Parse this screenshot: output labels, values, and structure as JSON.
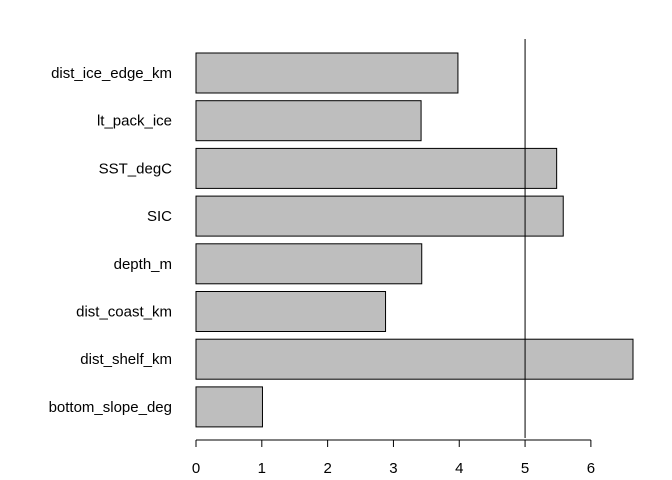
{
  "chart_data": {
    "type": "bar",
    "orientation": "horizontal",
    "categories": [
      "dist_ice_edge_km",
      "lt_pack_ice",
      "SST_degC",
      "SIC",
      "depth_m",
      "dist_coast_km",
      "dist_shelf_km",
      "bottom_slope_deg"
    ],
    "values": [
      3.98,
      3.42,
      5.48,
      5.58,
      3.43,
      2.88,
      6.64,
      1.01
    ],
    "title": "",
    "xlabel": "",
    "ylabel": "",
    "xlim": [
      0,
      6.64
    ],
    "xticks": [
      0,
      1,
      2,
      3,
      4,
      5,
      6
    ],
    "reference_line": 5,
    "grid": false,
    "bar_color": "#bebebe",
    "edge_color": "#000000"
  }
}
